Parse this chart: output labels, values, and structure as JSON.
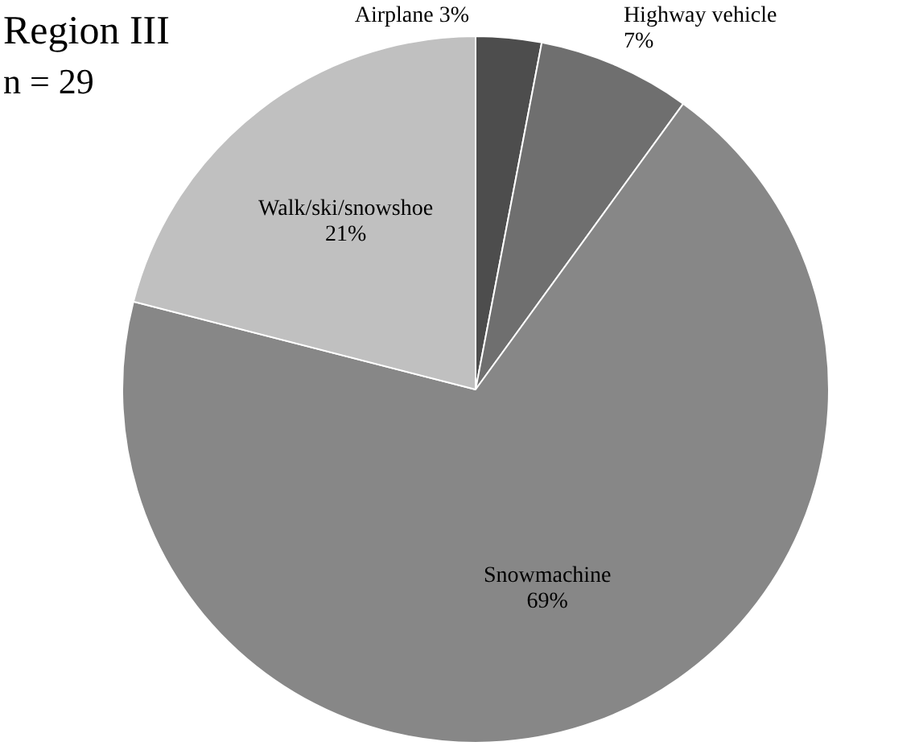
{
  "chart_data": {
    "type": "pie",
    "title": "Region III",
    "subtitle": "n = 29",
    "categories": [
      "Airplane",
      "Highway vehicle",
      "Snowmachine",
      "Walk/ski/snowshoe"
    ],
    "values": [
      3,
      7,
      69,
      21
    ],
    "colors": [
      "#4d4d4d",
      "#6f6f6f",
      "#878787",
      "#c0c0c0"
    ],
    "value_labels": [
      "3%",
      "7%",
      "69%",
      "21%"
    ],
    "legend": false
  }
}
